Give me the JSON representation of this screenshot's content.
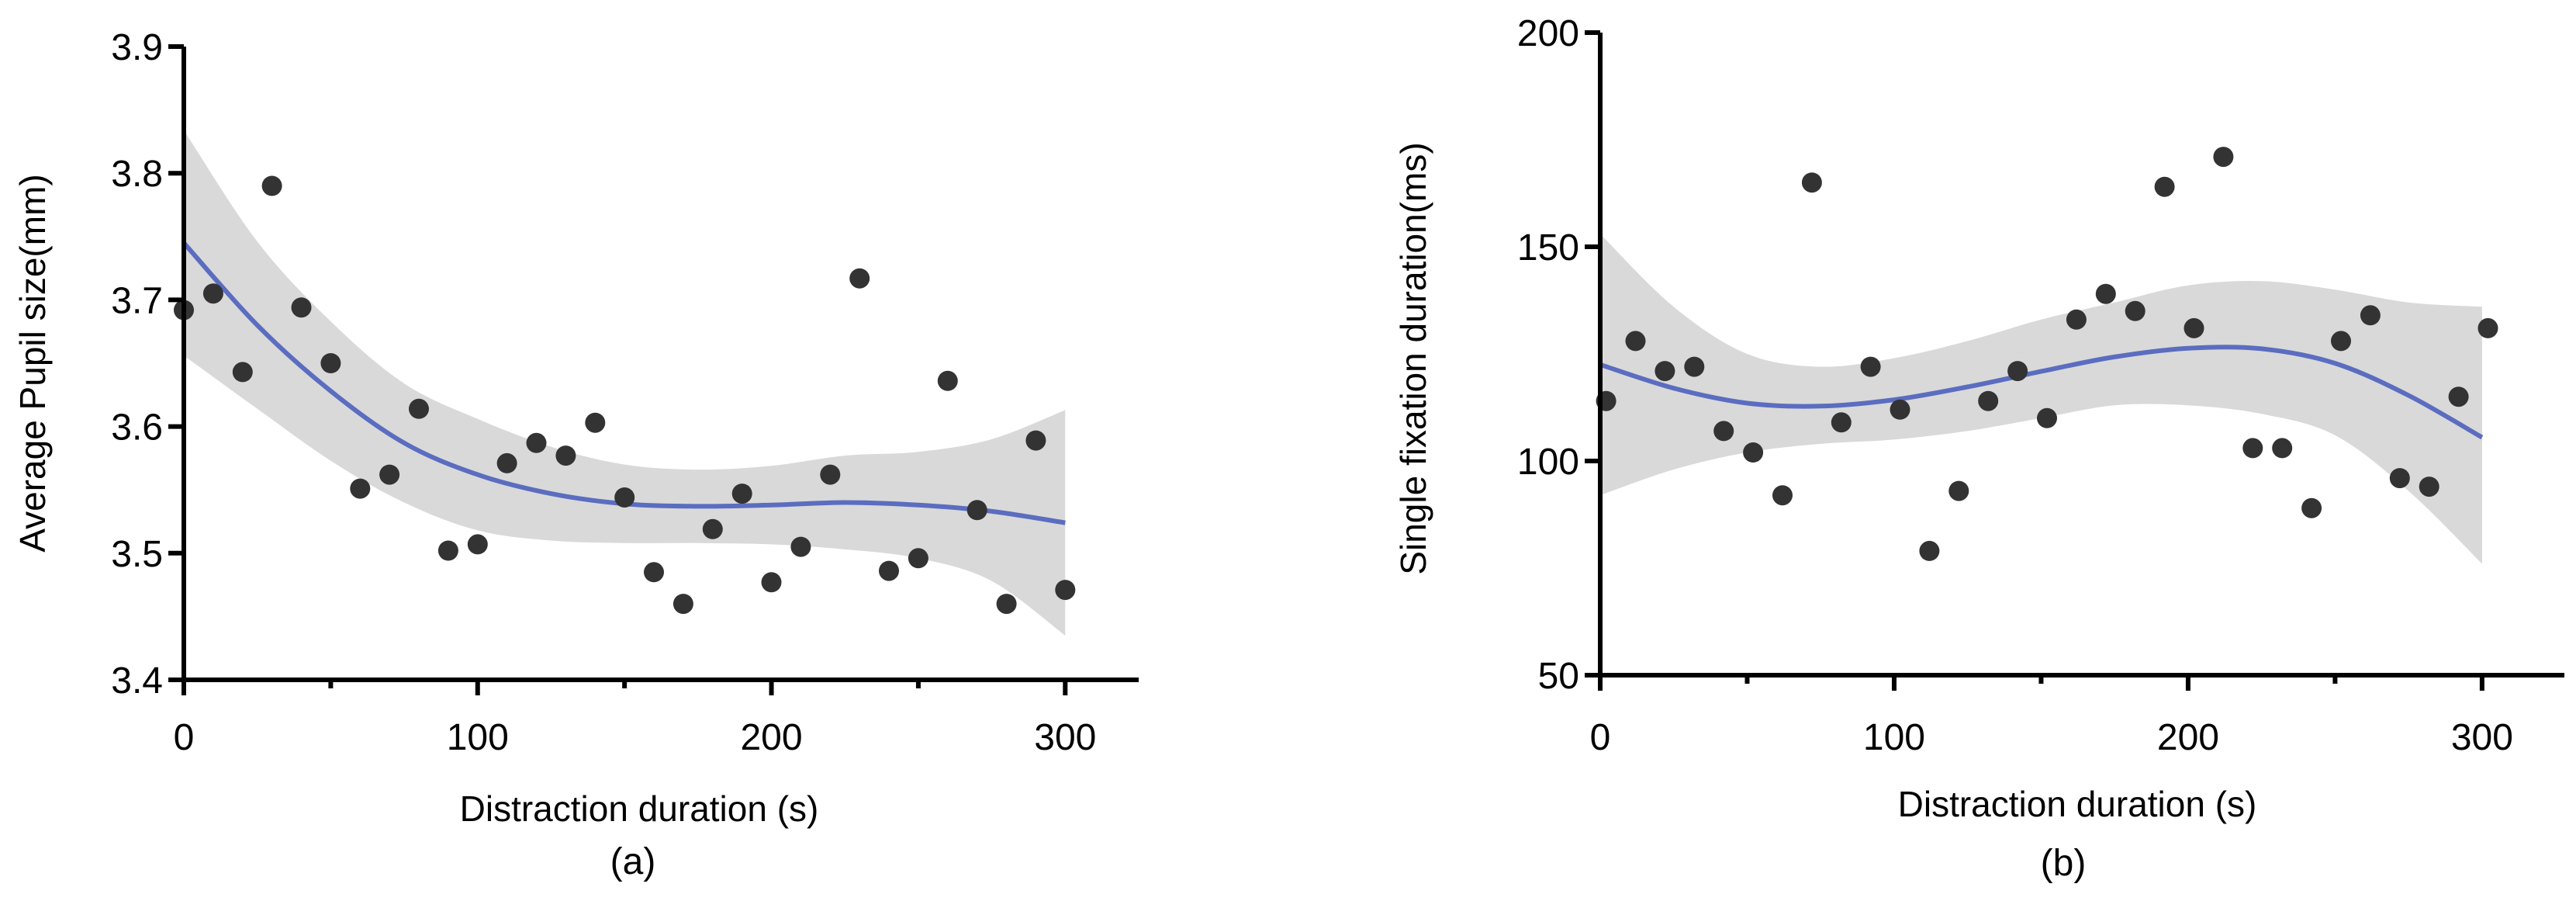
{
  "colors": {
    "point": "#333333",
    "fit": "#5b6dc0",
    "band": "#d9d9d9"
  },
  "chart_data": [
    {
      "type": "scatter",
      "panel_label": "(a)",
      "xlabel": "Distraction duration (s)",
      "ylabel": "Average Pupil size(mm)",
      "xlim": [
        0,
        325
      ],
      "ylim": [
        3.4,
        3.9
      ],
      "xticks": [
        0,
        100,
        200,
        300
      ],
      "xtick_labels": [
        "0",
        "100",
        "200",
        "300"
      ],
      "xminor": [
        50,
        150,
        250
      ],
      "yticks": [
        3.4,
        3.5,
        3.6,
        3.7,
        3.8,
        3.9
      ],
      "ytick_labels": [
        "3.4",
        "3.5",
        "3.6",
        "3.7",
        "3.8",
        "3.9"
      ],
      "points": {
        "x": [
          0,
          10,
          20,
          30,
          40,
          50,
          60,
          70,
          80,
          90,
          100,
          110,
          120,
          130,
          140,
          150,
          160,
          170,
          180,
          190,
          200,
          210,
          220,
          230,
          240,
          250,
          260,
          270,
          280,
          290,
          300
        ],
        "y": [
          3.692,
          3.705,
          3.643,
          3.79,
          3.694,
          3.65,
          3.551,
          3.562,
          3.614,
          3.502,
          3.507,
          3.571,
          3.587,
          3.577,
          3.603,
          3.544,
          3.485,
          3.46,
          3.519,
          3.547,
          3.477,
          3.505,
          3.562,
          3.717,
          3.486,
          3.496,
          3.636,
          3.534,
          3.46,
          3.589,
          3.471
        ]
      },
      "fit": {
        "x": [
          0,
          25,
          50,
          75,
          100,
          125,
          150,
          175,
          200,
          225,
          250,
          275,
          300
        ],
        "y": [
          3.745,
          3.68,
          3.628,
          3.587,
          3.562,
          3.547,
          3.539,
          3.537,
          3.538,
          3.54,
          3.538,
          3.533,
          3.524
        ]
      },
      "band": {
        "x": [
          0,
          25,
          50,
          75,
          100,
          125,
          150,
          175,
          200,
          225,
          250,
          275,
          300
        ],
        "lower": [
          3.656,
          3.614,
          3.573,
          3.54,
          3.518,
          3.51,
          3.508,
          3.508,
          3.507,
          3.503,
          3.496,
          3.478,
          3.435
        ],
        "upper": [
          3.834,
          3.746,
          3.683,
          3.634,
          3.606,
          3.584,
          3.57,
          3.566,
          3.569,
          3.577,
          3.58,
          3.59,
          3.613
        ]
      }
    },
    {
      "type": "scatter",
      "panel_label": "(b)",
      "xlabel": "Distraction duration (s)",
      "ylabel": "Single fixation duration(ms)",
      "xlim": [
        0,
        328
      ],
      "ylim": [
        50,
        200
      ],
      "xticks": [
        0,
        100,
        200,
        300
      ],
      "xtick_labels": [
        "0",
        "100",
        "200",
        "300"
      ],
      "xminor": [
        50,
        150,
        250
      ],
      "yticks": [
        50,
        100,
        150,
        200
      ],
      "ytick_labels": [
        "50",
        "100",
        "150",
        "200"
      ],
      "points": {
        "x": [
          2,
          12,
          22,
          32,
          42,
          52,
          62,
          72,
          82,
          92,
          102,
          112,
          122,
          132,
          142,
          152,
          162,
          172,
          182,
          192,
          202,
          212,
          222,
          232,
          242,
          252,
          262,
          272,
          282,
          292,
          302
        ],
        "y": [
          114,
          128,
          121,
          122,
          107,
          102,
          92,
          165,
          109,
          122,
          112,
          79,
          93,
          114,
          121,
          110,
          133,
          139,
          135,
          164,
          131,
          171,
          103,
          103,
          89,
          128,
          134,
          96,
          94,
          115,
          131
        ]
      },
      "fit": {
        "x": [
          0,
          25,
          50,
          75,
          100,
          125,
          150,
          175,
          200,
          225,
          250,
          275,
          300
        ],
        "y": [
          122.5,
          117.0,
          113.5,
          112.8,
          114.3,
          117.3,
          120.9,
          124.3,
          126.3,
          126.2,
          122.8,
          115.3,
          105.5
        ]
      },
      "band": {
        "x": [
          0,
          25,
          50,
          75,
          100,
          125,
          150,
          175,
          200,
          225,
          250,
          275,
          300
        ],
        "lower": [
          92,
          98,
          102,
          104,
          105,
          107,
          110,
          113,
          113,
          111,
          106,
          93,
          76
        ],
        "upper": [
          153,
          136,
          125,
          122,
          124,
          128,
          133,
          137,
          141,
          142,
          140,
          137,
          136
        ]
      }
    }
  ]
}
